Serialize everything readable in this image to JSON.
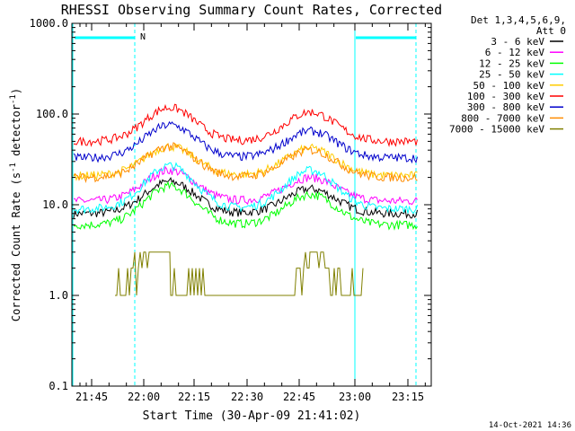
{
  "chart_data": {
    "type": "line",
    "title": "RHESSI Observing Summary Count Rates, Corrected",
    "xlabel": "Start Time (30-Apr-09 21:41:02)",
    "ylabel_main": "Corrected Count Rate (s",
    "ylabel_sup1": "-1",
    "ylabel_mid": " detector",
    "ylabel_sup2": "-1",
    "ylabel_end": ")",
    "yscale": "log",
    "ylim": [
      0.1,
      1000
    ],
    "xlim_minutes": [
      21.7,
      23.3
    ],
    "xtick_labels": [
      "21:45",
      "22:00",
      "22:15",
      "22:30",
      "22:45",
      "23:00",
      "23:15"
    ],
    "ytick_labels": [
      "0.1",
      "1.0",
      "10.0",
      "100.0",
      "1000.0"
    ],
    "legend_header": [
      "Det 1,3,4,5,6,9,",
      "Att 0"
    ],
    "legend_position": "top-right",
    "annotation_N": "N",
    "timestamp": "14-Oct-2021 14:36",
    "series": [
      {
        "name": "3 - 6 keV",
        "color": "#000000",
        "base": 8,
        "peak1": 18,
        "peak2": 15
      },
      {
        "name": "6 - 12 keV",
        "color": "#ff00ff",
        "base": 11,
        "peak1": 24,
        "peak2": 20
      },
      {
        "name": "12 - 25 keV",
        "color": "#00ff00",
        "base": 6,
        "peak1": 16,
        "peak2": 13
      },
      {
        "name": "25 - 50 keV",
        "color": "#00ffff",
        "base": 9,
        "peak1": 27,
        "peak2": 24
      },
      {
        "name": "50 - 100 keV",
        "color": "#ffcc00",
        "base": 21,
        "peak1": 44,
        "peak2": 42
      },
      {
        "name": "100 - 300 keV",
        "color": "#ff0000",
        "base": 50,
        "peak1": 118,
        "peak2": 105
      },
      {
        "name": "300 - 800 keV",
        "color": "#0000cc",
        "base": 33,
        "peak1": 76,
        "peak2": 65
      },
      {
        "name": "800 - 7000 keV",
        "color": "#ff8c00",
        "base": 20,
        "peak1": 44,
        "peak2": 40
      },
      {
        "name": "7000 - 15000 keV",
        "color": "#808000",
        "base": 1,
        "peak1": 3,
        "peak2": 3
      }
    ],
    "colors": {
      "cyan_markers": "#00ffff"
    }
  }
}
